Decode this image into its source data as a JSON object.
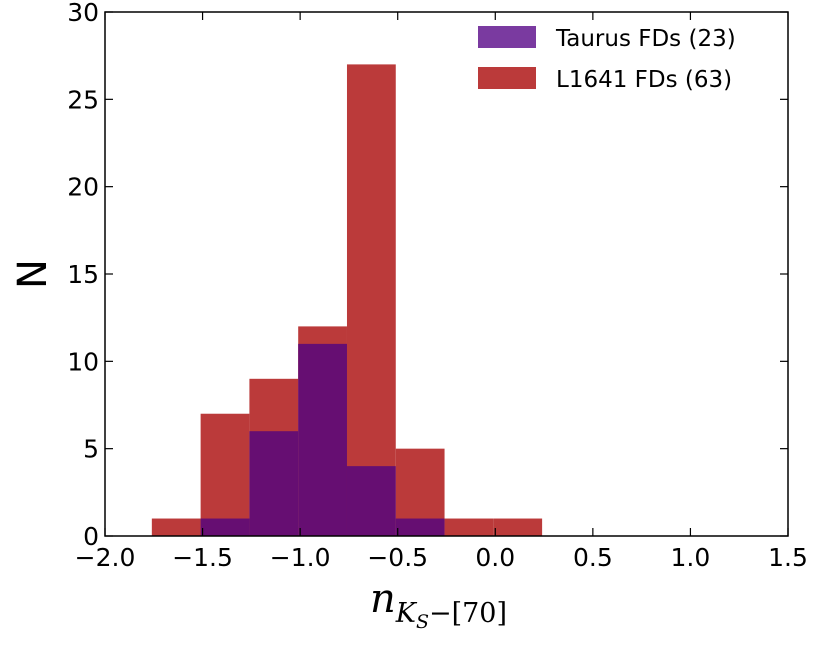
{
  "chart_data": {
    "type": "bar",
    "subtype": "histogram",
    "xlabel": {
      "base": "n",
      "sub_K": "K",
      "sub_S": "S",
      "sub_rest": "−[70]"
    },
    "ylabel": "N",
    "xlim": [
      -2.0,
      1.5
    ],
    "ylim": [
      0,
      30
    ],
    "xticks": [
      -2.0,
      -1.5,
      -1.0,
      -0.5,
      0.0,
      0.5,
      1.0,
      1.5
    ],
    "xtick_labels": [
      "−2.0",
      "−1.5",
      "−1.0",
      "−0.5",
      "0.0",
      "0.5",
      "1.0",
      "1.5"
    ],
    "yticks": [
      0,
      5,
      10,
      15,
      20,
      25,
      30
    ],
    "ytick_labels": [
      "0",
      "5",
      "10",
      "15",
      "20",
      "25",
      "30"
    ],
    "legend_position": "top-right",
    "series": [
      {
        "name": "L1641 FDs (63)",
        "color": "#bb3a3a",
        "bins": [
          {
            "x0": -1.76,
            "x1": -1.51,
            "count": 1
          },
          {
            "x0": -1.51,
            "x1": -1.26,
            "count": 7
          },
          {
            "x0": -1.26,
            "x1": -1.01,
            "count": 9
          },
          {
            "x0": -1.01,
            "x1": -0.76,
            "count": 12
          },
          {
            "x0": -0.76,
            "x1": -0.51,
            "count": 27
          },
          {
            "x0": -0.51,
            "x1": -0.26,
            "count": 5
          },
          {
            "x0": -0.26,
            "x1": -0.01,
            "count": 1
          },
          {
            "x0": -0.01,
            "x1": 0.24,
            "count": 1
          }
        ]
      },
      {
        "name": "Taurus FDs (23)",
        "color": "#660e72",
        "legend_color": "#7a3aa0",
        "bins": [
          {
            "x0": -1.51,
            "x1": -1.26,
            "count": 1
          },
          {
            "x0": -1.26,
            "x1": -1.01,
            "count": 6
          },
          {
            "x0": -1.01,
            "x1": -0.76,
            "count": 11
          },
          {
            "x0": -0.76,
            "x1": -0.51,
            "count": 4
          },
          {
            "x0": -0.51,
            "x1": -0.26,
            "count": 1
          }
        ]
      }
    ],
    "legend": [
      {
        "label": "Taurus FDs (23)",
        "color": "#7a3aa0"
      },
      {
        "label": "L1641 FDs (63)",
        "color": "#bb3a3a"
      }
    ]
  }
}
